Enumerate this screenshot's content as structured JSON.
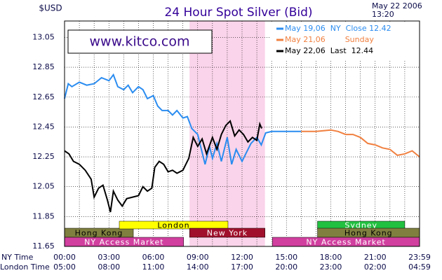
{
  "chart_data": {
    "type": "line",
    "title": "24 Hour Spot Silver (Bid)",
    "ylabel": "$USD",
    "date": "May 22 2006",
    "time": "13:20",
    "watermark": "www.kitco.com",
    "xlim": [
      0,
      24
    ],
    "ylim": [
      11.65,
      13.16
    ],
    "yticks": [
      11.65,
      11.85,
      12.05,
      12.25,
      12.45,
      12.65,
      12.85,
      13.05
    ],
    "x_row_label": "NY Time",
    "x2_row_label": "London Time",
    "xticks": [
      {
        "value": 0,
        "label": "00:00"
      },
      {
        "value": 3,
        "label": "03:00"
      },
      {
        "value": 6,
        "label": "06:00"
      },
      {
        "value": 9,
        "label": "09:00"
      },
      {
        "value": 12,
        "label": "12:00"
      },
      {
        "value": 15,
        "label": "15:00"
      },
      {
        "value": 18,
        "label": "18:00"
      },
      {
        "value": 21,
        "label": "21:00"
      },
      {
        "value": 24,
        "label": "23:59"
      }
    ],
    "x2ticks": [
      {
        "value": 0,
        "label": "05:00"
      },
      {
        "value": 3,
        "label": "08:00"
      },
      {
        "value": 6,
        "label": "11:00"
      },
      {
        "value": 9,
        "label": "14:00"
      },
      {
        "value": 12,
        "label": "17:00"
      },
      {
        "value": 15,
        "label": "20:00"
      },
      {
        "value": 18,
        "label": "23:00"
      },
      {
        "value": 21,
        "label": "02:00"
      },
      {
        "value": 24,
        "label": "04:59"
      }
    ],
    "xgrid": [
      1,
      2,
      4,
      5,
      7,
      8,
      10,
      11,
      13,
      14,
      16,
      17,
      19,
      20,
      22,
      23
    ],
    "grid": true,
    "sessions": [
      {
        "label": "Hong Kong",
        "start": 0,
        "end": 4.65,
        "color": "#7f7f3f"
      },
      {
        "label": "London",
        "start": 3.7,
        "end": 11.05,
        "color": "#ffff00"
      },
      {
        "label": "New York",
        "start": 8.45,
        "end": 13.55,
        "color": "#a0102c"
      },
      {
        "label": "NY Access Market",
        "start": 0,
        "end": 8.05,
        "color": "#d13f9f"
      },
      {
        "label": "Sydney",
        "start": 17.1,
        "end": 23,
        "color": "#22c040"
      },
      {
        "label": "Hong Kong",
        "start": 17.1,
        "end": 24,
        "color": "#7f7f3f"
      },
      {
        "label": "NY Access Market",
        "start": 14.05,
        "end": 24,
        "color": "#d13f9f"
      }
    ],
    "series": [
      {
        "name": "May 19,06  NY  Close 12.42",
        "color": "#2a8cf0",
        "x": [
          0,
          0.25,
          0.5,
          1,
          1.5,
          2,
          2.5,
          3,
          3.3,
          3.6,
          4,
          4.3,
          4.6,
          5,
          5.3,
          5.6,
          6,
          6.3,
          6.6,
          7,
          7.3,
          7.6,
          8,
          8.3,
          8.6,
          9,
          9.3,
          9.5,
          9.8,
          10,
          10.3,
          10.6,
          11,
          11.3,
          11.6,
          12,
          12.3,
          12.6,
          13,
          13.3,
          13.6,
          14,
          16
        ],
        "values": [
          12.64,
          12.74,
          12.72,
          12.75,
          12.73,
          12.74,
          12.78,
          12.76,
          12.8,
          12.72,
          12.7,
          12.73,
          12.68,
          12.72,
          12.7,
          12.64,
          12.66,
          12.59,
          12.56,
          12.56,
          12.53,
          12.56,
          12.51,
          12.52,
          12.44,
          12.4,
          12.28,
          12.2,
          12.32,
          12.24,
          12.34,
          12.22,
          12.38,
          12.2,
          12.3,
          12.22,
          12.28,
          12.34,
          12.38,
          12.33,
          12.41,
          12.42,
          12.42
        ]
      },
      {
        "name": "May 21,06        Sunday",
        "color": "#f08040",
        "x": [
          16,
          17,
          18,
          18.5,
          19,
          19.5,
          20,
          20.5,
          21,
          21.5,
          22,
          22.5,
          23,
          23.5,
          24
        ],
        "values": [
          12.42,
          12.42,
          12.43,
          12.42,
          12.4,
          12.4,
          12.38,
          12.34,
          12.33,
          12.31,
          12.3,
          12.26,
          12.27,
          12.29,
          12.25
        ]
      },
      {
        "name": "May 22,06  Last  12.44",
        "color": "#000000",
        "x": [
          0,
          0.3,
          0.6,
          1,
          1.4,
          1.8,
          2,
          2.3,
          2.6,
          2.9,
          3.1,
          3.3,
          3.6,
          3.9,
          4.2,
          4.6,
          5,
          5.3,
          5.6,
          5.9,
          6.1,
          6.4,
          6.7,
          7,
          7.3,
          7.6,
          8,
          8.4,
          8.7,
          9,
          9.3,
          9.6,
          10,
          10.3,
          10.6,
          10.9,
          11.2,
          11.5,
          11.8,
          12.1,
          12.4,
          12.7,
          13,
          13.2,
          13.33
        ],
        "values": [
          12.29,
          12.27,
          12.22,
          12.2,
          12.16,
          12.1,
          11.98,
          12.04,
          12.06,
          11.96,
          11.88,
          12.02,
          11.96,
          11.92,
          11.97,
          11.98,
          11.99,
          12.05,
          12.02,
          12.04,
          12.18,
          12.22,
          12.2,
          12.15,
          12.16,
          12.14,
          12.16,
          12.24,
          12.38,
          12.32,
          12.37,
          12.27,
          12.38,
          12.3,
          12.4,
          12.46,
          12.49,
          12.39,
          12.43,
          12.4,
          12.35,
          12.38,
          12.36,
          12.47,
          12.44
        ]
      }
    ]
  }
}
